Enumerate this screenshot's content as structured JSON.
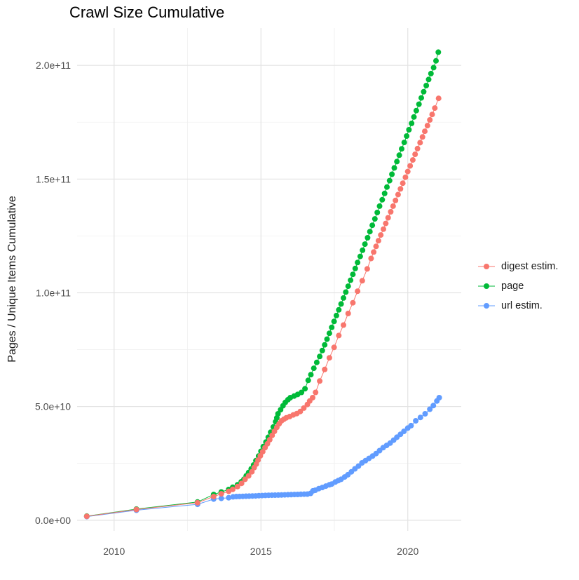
{
  "chart_data": {
    "type": "scatter",
    "title": "Crawl Size Cumulative",
    "xlabel": "",
    "ylabel": "Pages / Unique Items Cumulative",
    "legend_position": "right",
    "grid": true,
    "background": "#ffffff",
    "grid_major_color": "#e3e3e3",
    "grid_minor_color": "#f0f0f0",
    "tick_label_color": "#4d4d4d",
    "x_axis": {
      "range": [
        2008.74,
        2021.82
      ],
      "ticks": [
        {
          "value": 2010,
          "label": "2010"
        },
        {
          "value": 2015,
          "label": "2015"
        },
        {
          "value": 2020,
          "label": "2020"
        }
      ],
      "minor": [
        2012.5,
        2017.5
      ]
    },
    "y_axis": {
      "range": [
        -4700000000.0,
        216400000000.0
      ],
      "ticks": [
        {
          "value": 0,
          "label": "0.0e+00"
        },
        {
          "value": 50000000000.0,
          "label": "5.0e+10"
        },
        {
          "value": 100000000000.0,
          "label": "1.0e+11"
        },
        {
          "value": 150000000000.0,
          "label": "1.5e+11"
        },
        {
          "value": 200000000000.0,
          "label": "2.0e+11"
        }
      ],
      "minor": [
        25000000000.0,
        75000000000.0,
        125000000000.0,
        175000000000.0
      ]
    },
    "draw_order": [
      1,
      2,
      0
    ],
    "series": [
      {
        "name": "digest estim.",
        "color": "#F8766D",
        "points": [
          [
            2009.07,
            1700000000.0
          ],
          [
            2010.76,
            4700000000.0
          ],
          [
            2012.84,
            7700000000.0
          ],
          [
            2013.39,
            10400000000.0
          ],
          [
            2013.65,
            11600000000.0
          ],
          [
            2013.9,
            12700000000.0
          ],
          [
            2014.04,
            13600000000.0
          ],
          [
            2014.2,
            14800000000.0
          ],
          [
            2014.34,
            16200000000.0
          ],
          [
            2014.46,
            18000000000.0
          ],
          [
            2014.58,
            19500000000.0
          ],
          [
            2014.69,
            21300000000.0
          ],
          [
            2014.77,
            23100000000.0
          ],
          [
            2014.84,
            24700000000.0
          ],
          [
            2014.9,
            26400000000.0
          ],
          [
            2014.98,
            28300000000.0
          ],
          [
            2015.06,
            30100000000.0
          ],
          [
            2015.14,
            31900000000.0
          ],
          [
            2015.22,
            33600000000.0
          ],
          [
            2015.3,
            35400000000.0
          ],
          [
            2015.38,
            37300000000.0
          ],
          [
            2015.46,
            39100000000.0
          ],
          [
            2015.54,
            40800000000.0
          ],
          [
            2015.62,
            42400000000.0
          ],
          [
            2015.7,
            43700000000.0
          ],
          [
            2015.78,
            44400000000.0
          ],
          [
            2015.86,
            45000000000.0
          ],
          [
            2015.98,
            45600000000.0
          ],
          [
            2016.1,
            46300000000.0
          ],
          [
            2016.22,
            46900000000.0
          ],
          [
            2016.34,
            47800000000.0
          ],
          [
            2016.46,
            49300000000.0
          ],
          [
            2016.58,
            50900000000.0
          ],
          [
            2016.66,
            52400000000.0
          ],
          [
            2016.76,
            53900000000.0
          ],
          [
            2016.86,
            56200000000.0
          ],
          [
            2017.0,
            61200000000.0
          ],
          [
            2017.17,
            66300000000.0
          ],
          [
            2017.33,
            71400000000.0
          ],
          [
            2017.49,
            76000000000.0
          ],
          [
            2017.65,
            81200000000.0
          ],
          [
            2017.81,
            85800000000.0
          ],
          [
            2017.97,
            90900000000.0
          ],
          [
            2018.13,
            95600000000.0
          ],
          [
            2018.29,
            100700000000.0
          ],
          [
            2018.45,
            105300000000.0
          ],
          [
            2018.62,
            110500000000.0
          ],
          [
            2018.75,
            115100000000.0
          ],
          [
            2018.84,
            117900000000.0
          ],
          [
            2018.92,
            120400000000.0
          ],
          [
            2019.0,
            122900000000.0
          ],
          [
            2019.08,
            125400000000.0
          ],
          [
            2019.17,
            128000000000.0
          ],
          [
            2019.25,
            130500000000.0
          ],
          [
            2019.33,
            133000000000.0
          ],
          [
            2019.42,
            135600000000.0
          ],
          [
            2019.5,
            138100000000.0
          ],
          [
            2019.58,
            140600000000.0
          ],
          [
            2019.67,
            143200000000.0
          ],
          [
            2019.75,
            145700000000.0
          ],
          [
            2019.83,
            148200000000.0
          ],
          [
            2019.92,
            150800000000.0
          ],
          [
            2020.0,
            153300000000.0
          ],
          [
            2020.08,
            155800000000.0
          ],
          [
            2020.17,
            158400000000.0
          ],
          [
            2020.25,
            160900000000.0
          ],
          [
            2020.33,
            163400000000.0
          ],
          [
            2020.42,
            166000000000.0
          ],
          [
            2020.5,
            168500000000.0
          ],
          [
            2020.58,
            171000000000.0
          ],
          [
            2020.67,
            173500000000.0
          ],
          [
            2020.75,
            176000000000.0
          ],
          [
            2020.83,
            178400000000.0
          ],
          [
            2020.92,
            181200000000.0
          ],
          [
            2021.05,
            185500000000.0
          ]
        ]
      },
      {
        "name": "page",
        "color": "#00BA38",
        "points": [
          [
            2009.07,
            1800000000.0
          ],
          [
            2010.76,
            4900000000.0
          ],
          [
            2012.84,
            8000000000.0
          ],
          [
            2013.39,
            11300000000.0
          ],
          [
            2013.65,
            12400000000.0
          ],
          [
            2013.9,
            13500000000.0
          ],
          [
            2014.04,
            14500000000.0
          ],
          [
            2014.2,
            15600000000.0
          ],
          [
            2014.33,
            16900000000.0
          ],
          [
            2014.42,
            18000000000.0
          ],
          [
            2014.5,
            19500000000.0
          ],
          [
            2014.58,
            21000000000.0
          ],
          [
            2014.67,
            22600000000.0
          ],
          [
            2014.75,
            24300000000.0
          ],
          [
            2014.83,
            26200000000.0
          ],
          [
            2014.92,
            28200000000.0
          ],
          [
            2015.0,
            30300000000.0
          ],
          [
            2015.08,
            32400000000.0
          ],
          [
            2015.17,
            34400000000.0
          ],
          [
            2015.25,
            36500000000.0
          ],
          [
            2015.33,
            38700000000.0
          ],
          [
            2015.42,
            41000000000.0
          ],
          [
            2015.5,
            43300000000.0
          ],
          [
            2015.54,
            45000000000.0
          ],
          [
            2015.58,
            46800000000.0
          ],
          [
            2015.67,
            48600000000.0
          ],
          [
            2015.75,
            50300000000.0
          ],
          [
            2015.83,
            51800000000.0
          ],
          [
            2015.92,
            53000000000.0
          ],
          [
            2016.0,
            53900000000.0
          ],
          [
            2016.13,
            54600000000.0
          ],
          [
            2016.25,
            55300000000.0
          ],
          [
            2016.38,
            56200000000.0
          ],
          [
            2016.5,
            57800000000.0
          ],
          [
            2016.61,
            61500000000.0
          ],
          [
            2016.7,
            64000000000.0
          ],
          [
            2016.8,
            66800000000.0
          ],
          [
            2016.9,
            69400000000.0
          ],
          [
            2017.0,
            72000000000.0
          ],
          [
            2017.09,
            74600000000.0
          ],
          [
            2017.17,
            77100000000.0
          ],
          [
            2017.25,
            79600000000.0
          ],
          [
            2017.33,
            82200000000.0
          ],
          [
            2017.41,
            84800000000.0
          ],
          [
            2017.49,
            87400000000.0
          ],
          [
            2017.57,
            90000000000.0
          ],
          [
            2017.65,
            92500000000.0
          ],
          [
            2017.73,
            95100000000.0
          ],
          [
            2017.81,
            97700000000.0
          ],
          [
            2017.89,
            100300000000.0
          ],
          [
            2017.97,
            102900000000.0
          ],
          [
            2018.05,
            105500000000.0
          ],
          [
            2018.13,
            108100000000.0
          ],
          [
            2018.21,
            110700000000.0
          ],
          [
            2018.29,
            113300000000.0
          ],
          [
            2018.38,
            116000000000.0
          ],
          [
            2018.46,
            118700000000.0
          ],
          [
            2018.54,
            121400000000.0
          ],
          [
            2018.63,
            124200000000.0
          ],
          [
            2018.71,
            126900000000.0
          ],
          [
            2018.79,
            129700000000.0
          ],
          [
            2018.88,
            132500000000.0
          ],
          [
            2018.96,
            135300000000.0
          ],
          [
            2019.04,
            138100000000.0
          ],
          [
            2019.13,
            140900000000.0
          ],
          [
            2019.21,
            143700000000.0
          ],
          [
            2019.29,
            146500000000.0
          ],
          [
            2019.38,
            149300000000.0
          ],
          [
            2019.46,
            152100000000.0
          ],
          [
            2019.54,
            154900000000.0
          ],
          [
            2019.63,
            157700000000.0
          ],
          [
            2019.71,
            160500000000.0
          ],
          [
            2019.79,
            163300000000.0
          ],
          [
            2019.88,
            166100000000.0
          ],
          [
            2019.96,
            168900000000.0
          ],
          [
            2020.04,
            171700000000.0
          ],
          [
            2020.13,
            174500000000.0
          ],
          [
            2020.21,
            177300000000.0
          ],
          [
            2020.29,
            180100000000.0
          ],
          [
            2020.38,
            182900000000.0
          ],
          [
            2020.46,
            185700000000.0
          ],
          [
            2020.54,
            188400000000.0
          ],
          [
            2020.63,
            191100000000.0
          ],
          [
            2020.71,
            193800000000.0
          ],
          [
            2020.79,
            196400000000.0
          ],
          [
            2020.88,
            199000000000.0
          ],
          [
            2020.96,
            202000000000.0
          ],
          [
            2021.04,
            205800000000.0
          ]
        ]
      },
      {
        "name": "url estim.",
        "color": "#619CFF",
        "points": [
          [
            2009.07,
            1600000000.0
          ],
          [
            2010.76,
            4400000000.0
          ],
          [
            2012.84,
            7000000000.0
          ],
          [
            2013.39,
            9300000000.0
          ],
          [
            2013.65,
            9600000000.0
          ],
          [
            2013.9,
            9900000000.0
          ],
          [
            2014.05,
            10300000000.0
          ],
          [
            2014.16,
            10400000000.0
          ],
          [
            2014.27,
            10450000000.0
          ],
          [
            2014.38,
            10500000000.0
          ],
          [
            2014.49,
            10550000000.0
          ],
          [
            2014.6,
            10600000000.0
          ],
          [
            2014.71,
            10650000000.0
          ],
          [
            2014.82,
            10700000000.0
          ],
          [
            2014.93,
            10780000000.0
          ],
          [
            2015.04,
            10850000000.0
          ],
          [
            2015.15,
            10900000000.0
          ],
          [
            2015.26,
            10950000000.0
          ],
          [
            2015.37,
            11000000000.0
          ],
          [
            2015.48,
            11020000000.0
          ],
          [
            2015.59,
            11050000000.0
          ],
          [
            2015.7,
            11100000000.0
          ],
          [
            2015.81,
            11150000000.0
          ],
          [
            2015.92,
            11200000000.0
          ],
          [
            2016.03,
            11250000000.0
          ],
          [
            2016.14,
            11300000000.0
          ],
          [
            2016.25,
            11350000000.0
          ],
          [
            2016.36,
            11400000000.0
          ],
          [
            2016.47,
            11450000000.0
          ],
          [
            2016.58,
            11500000000.0
          ],
          [
            2016.69,
            11800000000.0
          ],
          [
            2016.77,
            12900000000.0
          ],
          [
            2016.85,
            13200000000.0
          ],
          [
            2016.97,
            13900000000.0
          ],
          [
            2017.09,
            14400000000.0
          ],
          [
            2017.21,
            15000000000.0
          ],
          [
            2017.33,
            15600000000.0
          ],
          [
            2017.41,
            15900000000.0
          ],
          [
            2017.53,
            16800000000.0
          ],
          [
            2017.63,
            17400000000.0
          ],
          [
            2017.73,
            18000000000.0
          ],
          [
            2017.85,
            19000000000.0
          ],
          [
            2017.96,
            20000000000.0
          ],
          [
            2018.08,
            21300000000.0
          ],
          [
            2018.2,
            22600000000.0
          ],
          [
            2018.32,
            23800000000.0
          ],
          [
            2018.44,
            25200000000.0
          ],
          [
            2018.56,
            26200000000.0
          ],
          [
            2018.68,
            27200000000.0
          ],
          [
            2018.8,
            28200000000.0
          ],
          [
            2018.92,
            29300000000.0
          ],
          [
            2019.04,
            30600000000.0
          ],
          [
            2019.16,
            31900000000.0
          ],
          [
            2019.28,
            32900000000.0
          ],
          [
            2019.4,
            33900000000.0
          ],
          [
            2019.52,
            35200000000.0
          ],
          [
            2019.63,
            36500000000.0
          ],
          [
            2019.75,
            37800000000.0
          ],
          [
            2019.87,
            39100000000.0
          ],
          [
            2020.0,
            40500000000.0
          ],
          [
            2020.11,
            41600000000.0
          ],
          [
            2020.27,
            43700000000.0
          ],
          [
            2020.43,
            45200000000.0
          ],
          [
            2020.59,
            46800000000.0
          ],
          [
            2020.75,
            48800000000.0
          ],
          [
            2020.87,
            50400000000.0
          ],
          [
            2020.99,
            52400000000.0
          ],
          [
            2021.07,
            53900000000.0
          ]
        ]
      }
    ]
  }
}
